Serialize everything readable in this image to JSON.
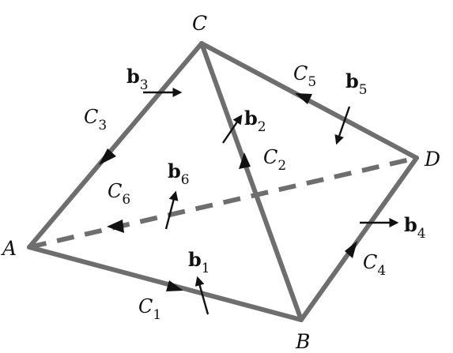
{
  "vertices": {
    "A": "A",
    "B": "B",
    "C": "C",
    "D": "D"
  },
  "curves": {
    "C1": {
      "main": "C",
      "sub": "1"
    },
    "C2": {
      "main": "C",
      "sub": "2"
    },
    "C3": {
      "main": "C",
      "sub": "3"
    },
    "C4": {
      "main": "C",
      "sub": "4"
    },
    "C5": {
      "main": "C",
      "sub": "5"
    },
    "C6": {
      "main": "C",
      "sub": "6"
    }
  },
  "normals": {
    "b1": {
      "main": "b",
      "sub": "1"
    },
    "b2": {
      "main": "b",
      "sub": "2"
    },
    "b3": {
      "main": "b",
      "sub": "3"
    },
    "b4": {
      "main": "b",
      "sub": "4"
    },
    "b5": {
      "main": "b",
      "sub": "5"
    },
    "b6": {
      "main": "b",
      "sub": "6"
    }
  },
  "colors": {
    "edge": "#6e6e6e",
    "arrow": "#111111",
    "background": "#ffffff"
  }
}
